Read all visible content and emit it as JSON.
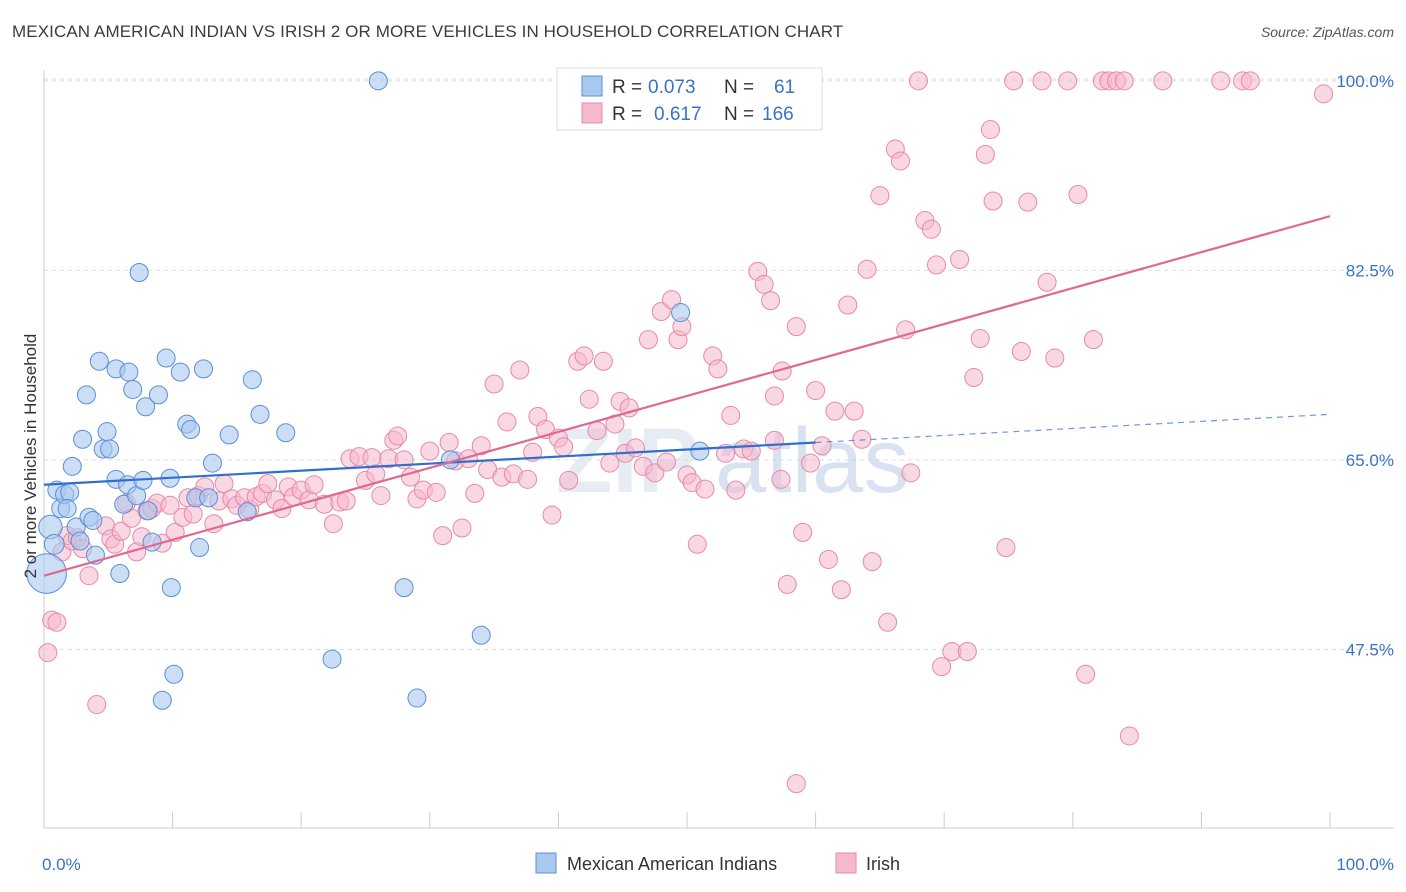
{
  "title": "MEXICAN AMERICAN INDIAN VS IRISH 2 OR MORE VEHICLES IN HOUSEHOLD CORRELATION CHART",
  "source": "Source: ZipAtlas.com",
  "watermark": {
    "zip": "ZIP",
    "atlas": "atlas"
  },
  "colors": {
    "blue_fill": "#a9c8ee",
    "blue_stroke": "#5b8fd6",
    "blue_line": "#2f6fd0",
    "pink_fill": "#f6b8cc",
    "pink_stroke": "#e58aa8",
    "pink_line": "#e06891",
    "tick": "#3a72c4",
    "grid": "#dddddd"
  },
  "legend": {
    "blue": {
      "r_label": "R =",
      "r_value": "0.073",
      "n_label": "N =",
      "n_value": "61"
    },
    "pink": {
      "r_label": "R =",
      "r_value": "0.617",
      "n_label": "N =",
      "n_value": "166"
    }
  },
  "chart_data": {
    "type": "scatter",
    "title": "MEXICAN AMERICAN INDIAN VS IRISH 2 OR MORE VEHICLES IN HOUSEHOLD CORRELATION CHART",
    "xlabel": "",
    "ylabel": "2 or more Vehicles in Household",
    "xlim": [
      0,
      100
    ],
    "ylim": [
      31,
      101
    ],
    "x_tick_labels": [
      "0.0%",
      "100.0%"
    ],
    "y_ticks": [
      47.5,
      65.0,
      82.5,
      100.0
    ],
    "y_tick_labels": [
      "47.5%",
      "65.0%",
      "82.5%",
      "100.0%"
    ],
    "grid": true,
    "legend_position": "top-center",
    "series": [
      {
        "name": "Mexican American Indians",
        "color": "#a9c8ee",
        "trend": {
          "x0": 0,
          "y0": 62.7,
          "x1": 60,
          "y1": 66.6,
          "dashed_to_x": 100,
          "dashed_to_y": 69.2
        },
        "points": [
          [
            0.2,
            54.5,
            2.2
          ],
          [
            0.5,
            58.8,
            1.3
          ],
          [
            0.8,
            57.2,
            1.1
          ],
          [
            1.0,
            62.2,
            1.0
          ],
          [
            1.3,
            60.5,
            1.0
          ],
          [
            1.6,
            61.8,
            1.0
          ],
          [
            2.0,
            62.0,
            1.0
          ],
          [
            1.8,
            60.5,
            1.0
          ],
          [
            2.2,
            64.4,
            1.0
          ],
          [
            2.5,
            58.8,
            1.0
          ],
          [
            2.8,
            57.5,
            1.0
          ],
          [
            3.0,
            66.9,
            1.0
          ],
          [
            3.3,
            71.0,
            1.0
          ],
          [
            3.5,
            59.7,
            1.0
          ],
          [
            3.8,
            59.4,
            1.0
          ],
          [
            4.0,
            56.2,
            1.0
          ],
          [
            4.3,
            74.1,
            1.0
          ],
          [
            4.6,
            66.0,
            1.0
          ],
          [
            4.9,
            67.6,
            1.0
          ],
          [
            5.1,
            66.0,
            1.0
          ],
          [
            5.6,
            73.4,
            1.0
          ],
          [
            5.6,
            63.2,
            1.0
          ],
          [
            5.9,
            54.5,
            1.0
          ],
          [
            6.2,
            60.9,
            1.0
          ],
          [
            6.5,
            62.7,
            1.0
          ],
          [
            6.6,
            73.1,
            1.0
          ],
          [
            6.9,
            71.5,
            1.0
          ],
          [
            7.2,
            61.7,
            1.0
          ],
          [
            7.4,
            82.3,
            1.0
          ],
          [
            7.7,
            63.1,
            1.0
          ],
          [
            7.9,
            69.9,
            1.0
          ],
          [
            8.1,
            60.3,
            1.0
          ],
          [
            8.4,
            57.4,
            1.0
          ],
          [
            8.9,
            71.0,
            1.0
          ],
          [
            9.2,
            42.8,
            1.0
          ],
          [
            9.5,
            74.4,
            1.0
          ],
          [
            9.8,
            63.3,
            1.0
          ],
          [
            9.9,
            53.2,
            1.0
          ],
          [
            10.1,
            45.2,
            1.0
          ],
          [
            10.6,
            73.1,
            1.0
          ],
          [
            11.1,
            68.3,
            1.0
          ],
          [
            11.4,
            67.8,
            1.0
          ],
          [
            11.8,
            61.5,
            1.0
          ],
          [
            12.1,
            56.9,
            1.0
          ],
          [
            12.4,
            73.4,
            1.0
          ],
          [
            12.8,
            61.5,
            1.0
          ],
          [
            13.1,
            64.7,
            1.0
          ],
          [
            14.4,
            67.3,
            1.0
          ],
          [
            15.8,
            60.2,
            1.0
          ],
          [
            16.2,
            72.4,
            1.0
          ],
          [
            16.8,
            69.2,
            1.0
          ],
          [
            18.8,
            67.5,
            1.0
          ],
          [
            22.4,
            46.6,
            1.0
          ],
          [
            26.0,
            100.0,
            1.0
          ],
          [
            28.0,
            53.2,
            1.0
          ],
          [
            29.0,
            43.0,
            1.0
          ],
          [
            31.6,
            65.0,
            1.0
          ],
          [
            34.0,
            48.8,
            1.0
          ],
          [
            49.5,
            78.6,
            1.0
          ],
          [
            51.0,
            65.8,
            1.0
          ]
        ]
      },
      {
        "name": "Irish",
        "color": "#f6b8cc",
        "trend": {
          "x0": 0,
          "y0": 54.3,
          "x1": 100,
          "y1": 87.5
        },
        "points": [
          [
            0.3,
            47.2
          ],
          [
            0.6,
            50.2
          ],
          [
            1.0,
            50.0
          ],
          [
            1.4,
            56.5
          ],
          [
            1.8,
            58.0
          ],
          [
            2.2,
            57.5
          ],
          [
            2.6,
            57.8
          ],
          [
            3.0,
            56.8
          ],
          [
            3.5,
            54.3
          ],
          [
            4.1,
            42.4
          ],
          [
            4.8,
            58.9
          ],
          [
            5.2,
            57.7
          ],
          [
            5.5,
            57.2
          ],
          [
            6.0,
            58.4
          ],
          [
            6.4,
            61.0
          ],
          [
            6.8,
            59.6
          ],
          [
            7.2,
            56.5
          ],
          [
            7.6,
            57.9
          ],
          [
            8.0,
            60.3
          ],
          [
            8.4,
            60.5
          ],
          [
            8.8,
            61.0
          ],
          [
            9.2,
            57.3
          ],
          [
            9.8,
            60.8
          ],
          [
            10.2,
            58.3
          ],
          [
            10.8,
            59.7
          ],
          [
            11.2,
            61.5
          ],
          [
            11.6,
            60.0
          ],
          [
            12.0,
            61.7
          ],
          [
            12.5,
            62.5
          ],
          [
            13.2,
            59.1
          ],
          [
            13.6,
            61.2
          ],
          [
            14.0,
            62.8
          ],
          [
            14.6,
            61.4
          ],
          [
            15.0,
            60.8
          ],
          [
            15.6,
            61.5
          ],
          [
            16.0,
            60.4
          ],
          [
            16.5,
            61.6
          ],
          [
            17.0,
            61.9
          ],
          [
            17.4,
            62.8
          ],
          [
            18.0,
            61.3
          ],
          [
            18.5,
            60.5
          ],
          [
            19.0,
            62.5
          ],
          [
            19.4,
            61.6
          ],
          [
            20.0,
            62.2
          ],
          [
            20.6,
            61.3
          ],
          [
            21.0,
            62.7
          ],
          [
            21.8,
            60.9
          ],
          [
            22.5,
            59.1
          ],
          [
            23.0,
            61.1
          ],
          [
            23.5,
            61.2
          ],
          [
            23.8,
            65.1
          ],
          [
            24.5,
            65.3
          ],
          [
            25.0,
            63.1
          ],
          [
            25.5,
            65.2
          ],
          [
            25.8,
            63.7
          ],
          [
            26.2,
            61.7
          ],
          [
            26.8,
            65.1
          ],
          [
            27.2,
            66.8
          ],
          [
            27.5,
            67.2
          ],
          [
            28.0,
            65.0
          ],
          [
            28.5,
            63.4
          ],
          [
            29.0,
            61.4
          ],
          [
            29.5,
            62.2
          ],
          [
            30.0,
            65.8
          ],
          [
            30.5,
            62.0
          ],
          [
            31.0,
            58.0
          ],
          [
            31.5,
            66.6
          ],
          [
            32.0,
            64.9
          ],
          [
            32.5,
            58.7
          ],
          [
            33.0,
            65.1
          ],
          [
            33.5,
            61.9
          ],
          [
            34.0,
            66.3
          ],
          [
            34.5,
            64.1
          ],
          [
            35.0,
            72.0
          ],
          [
            35.6,
            63.4
          ],
          [
            36.0,
            68.5
          ],
          [
            36.5,
            63.7
          ],
          [
            37.0,
            73.3
          ],
          [
            37.6,
            63.2
          ],
          [
            38.0,
            65.7
          ],
          [
            38.4,
            69.0
          ],
          [
            39.0,
            67.8
          ],
          [
            39.5,
            59.9
          ],
          [
            40.0,
            67.0
          ],
          [
            40.4,
            66.2
          ],
          [
            40.8,
            63.1
          ],
          [
            41.5,
            74.1
          ],
          [
            42.0,
            74.6
          ],
          [
            42.4,
            70.6
          ],
          [
            43.0,
            67.7
          ],
          [
            43.5,
            74.1
          ],
          [
            44.0,
            64.7
          ],
          [
            44.4,
            68.3
          ],
          [
            44.8,
            70.4
          ],
          [
            45.2,
            65.6
          ],
          [
            45.5,
            69.8
          ],
          [
            46.0,
            66.1
          ],
          [
            46.6,
            64.4
          ],
          [
            47.0,
            76.1
          ],
          [
            47.5,
            63.8
          ],
          [
            48.0,
            78.7
          ],
          [
            48.4,
            64.8
          ],
          [
            48.8,
            79.8
          ],
          [
            49.3,
            76.1
          ],
          [
            49.6,
            77.3
          ],
          [
            50.0,
            63.6
          ],
          [
            50.4,
            62.9
          ],
          [
            50.8,
            57.2
          ],
          [
            51.4,
            62.3
          ],
          [
            52.0,
            74.6
          ],
          [
            52.4,
            73.4
          ],
          [
            53.0,
            65.6
          ],
          [
            53.4,
            69.1
          ],
          [
            53.8,
            62.2
          ],
          [
            54.4,
            66.0
          ],
          [
            55.0,
            65.8
          ],
          [
            55.5,
            82.4
          ],
          [
            56.0,
            81.2
          ],
          [
            56.5,
            79.7
          ],
          [
            56.8,
            70.9
          ],
          [
            57.4,
            73.2
          ],
          [
            57.8,
            53.5
          ],
          [
            58.5,
            77.3
          ],
          [
            59.0,
            58.3
          ],
          [
            59.6,
            64.7
          ],
          [
            60.0,
            71.4
          ],
          [
            60.5,
            66.3
          ],
          [
            61.0,
            55.8
          ],
          [
            61.5,
            69.5
          ],
          [
            62.0,
            53.0
          ],
          [
            62.5,
            79.3
          ],
          [
            63.0,
            69.5
          ],
          [
            63.6,
            66.9
          ],
          [
            64.0,
            82.6
          ],
          [
            64.4,
            55.6
          ],
          [
            65.0,
            89.4
          ],
          [
            65.6,
            50.0
          ],
          [
            66.2,
            93.7
          ],
          [
            66.6,
            92.6
          ],
          [
            67.0,
            77.0
          ],
          [
            67.4,
            63.8
          ],
          [
            68.0,
            100.0
          ],
          [
            68.5,
            87.1
          ],
          [
            69.0,
            86.3
          ],
          [
            69.4,
            83.0
          ],
          [
            69.8,
            45.9
          ],
          [
            70.6,
            47.3
          ],
          [
            71.2,
            83.5
          ],
          [
            71.8,
            47.3
          ],
          [
            72.3,
            72.6
          ],
          [
            72.8,
            76.2
          ],
          [
            73.2,
            93.2
          ],
          [
            73.6,
            95.5
          ],
          [
            73.8,
            88.9
          ],
          [
            74.8,
            56.9
          ],
          [
            75.4,
            100.0
          ],
          [
            76.0,
            75.0
          ],
          [
            76.5,
            88.8
          ],
          [
            77.6,
            100.0
          ],
          [
            78.0,
            81.4
          ],
          [
            78.6,
            74.4
          ],
          [
            79.6,
            100.0
          ],
          [
            80.4,
            89.5
          ],
          [
            81.0,
            45.2
          ],
          [
            81.6,
            76.1
          ],
          [
            82.3,
            100.0
          ],
          [
            82.8,
            100.0
          ],
          [
            83.4,
            100.0
          ],
          [
            84.0,
            100.0
          ],
          [
            84.4,
            39.5
          ],
          [
            87.0,
            100.0
          ],
          [
            91.5,
            100.0
          ],
          [
            93.2,
            100.0
          ],
          [
            93.8,
            100.0
          ],
          [
            99.5,
            98.8
          ],
          [
            58.5,
            35.1
          ],
          [
            56.8,
            66.8
          ],
          [
            57.3,
            63.2
          ]
        ]
      }
    ]
  },
  "bottom_legend": [
    "Mexican American Indians",
    "Irish"
  ]
}
